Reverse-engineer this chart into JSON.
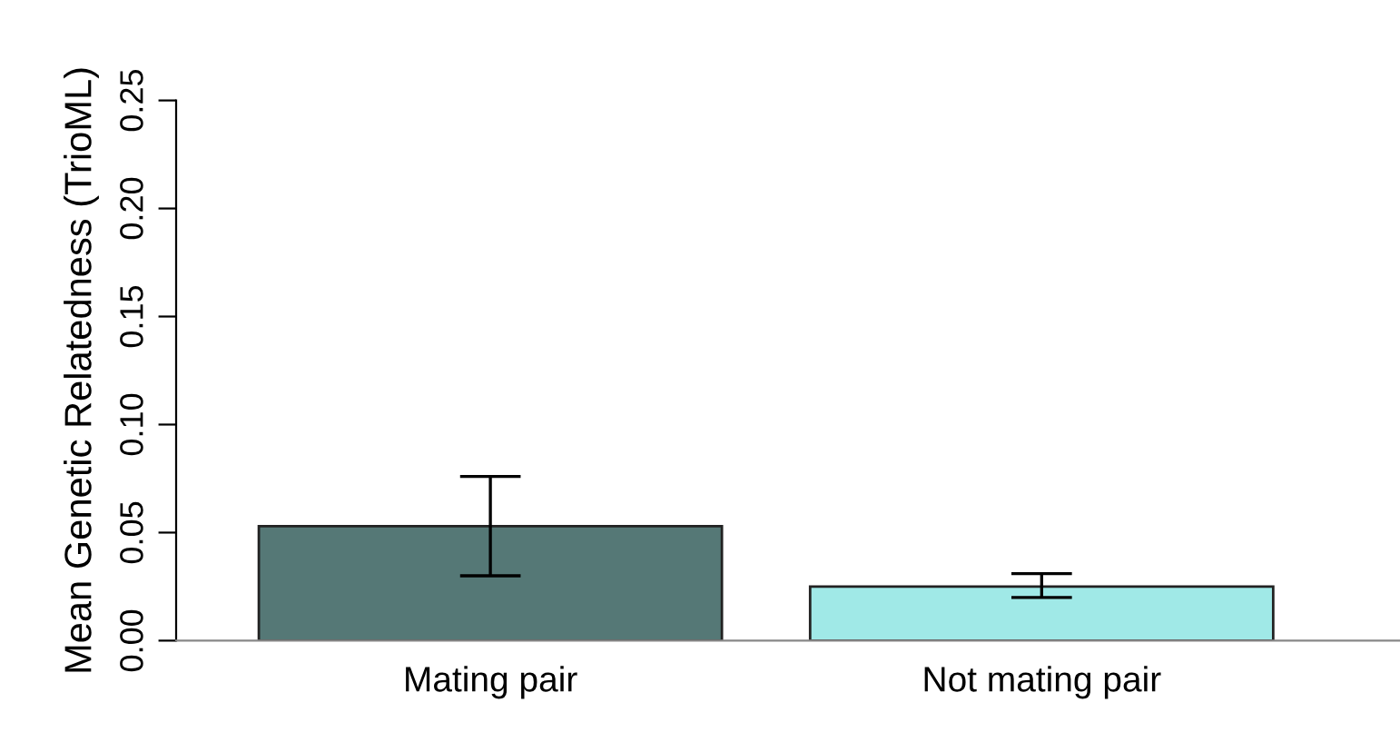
{
  "chart_data": {
    "type": "bar",
    "ylabel": "Mean Genetic Relatedness (TrioML)",
    "categories": [
      "Mating pair",
      "Not mating pair"
    ],
    "values": [
      0.053,
      0.025
    ],
    "colors": [
      "#557876",
      "#a0e9e7"
    ],
    "errors": [
      [
        0.03,
        0.076
      ],
      [
        0.02,
        0.031
      ]
    ],
    "ylim": [
      0,
      0.25
    ],
    "yticks": [
      {
        "value": 0,
        "label": "0.00"
      },
      {
        "value": 0.05,
        "label": "0.05"
      },
      {
        "value": 0.1,
        "label": "0.10"
      },
      {
        "value": 0.15,
        "label": "0.15"
      },
      {
        "value": 0.2,
        "label": "0.20"
      },
      {
        "value": 0.25,
        "label": "0.25"
      }
    ],
    "grid": false,
    "legend": false
  }
}
